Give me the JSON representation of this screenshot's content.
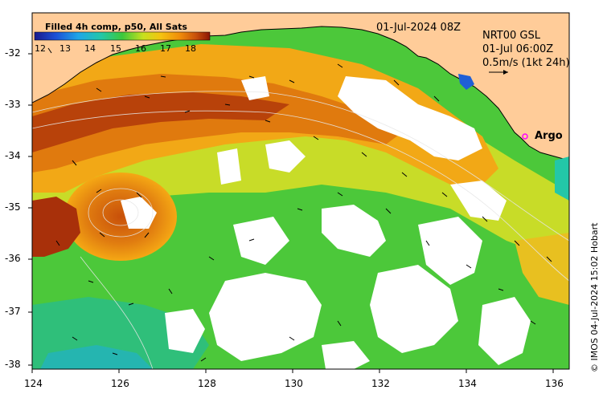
{
  "colorbar": {
    "title": "Filled 4h comp, p50, All Sats",
    "tick_labels": [
      "12",
      "13",
      "14",
      "15",
      "16",
      "17",
      "18"
    ]
  },
  "header": {
    "datetime": "01-Jul-2024 08Z",
    "current_source": "NRT00 GSL",
    "current_time": "01-Jul 06:00Z",
    "vector_scale": "0.5m/s (1kt 24h)"
  },
  "axes": {
    "x_tick_labels": [
      "124",
      "126",
      "128",
      "130",
      "132",
      "134",
      "136"
    ],
    "y_tick_labels": [
      "-32",
      "-33",
      "-34",
      "-35",
      "-36",
      "-37",
      "-38"
    ]
  },
  "markers": {
    "argo_label": "Argo"
  },
  "credit": "© IMOS 04-Jul-2024 15:02 Hobart",
  "colors": {
    "land": "#ffcc99",
    "cloud": "#ffffff",
    "argo_marker": "#ff00ff"
  }
}
